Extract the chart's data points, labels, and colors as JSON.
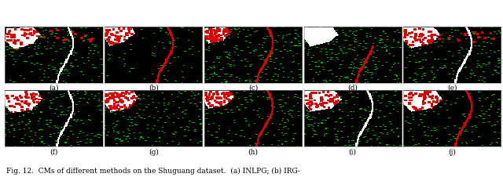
{
  "figure_width": 6.4,
  "figure_height": 2.4,
  "dpi": 100,
  "nrows": 2,
  "ncols": 5,
  "row1_labels": [
    "(a)",
    "(b)",
    "(c)",
    "(d)",
    "(e)"
  ],
  "row2_labels": [
    "(f)",
    "(g)",
    "(h)",
    "(i)",
    "(j)"
  ],
  "caption": "Fig. 12.  CMs of different methods on the Shuguang dataset.  (a) INLPG; (b) IRG-",
  "label_fontsize": 6.5,
  "caption_fontsize": 6.5,
  "background_color": "#ffffff",
  "subplot_bg": "#000000"
}
